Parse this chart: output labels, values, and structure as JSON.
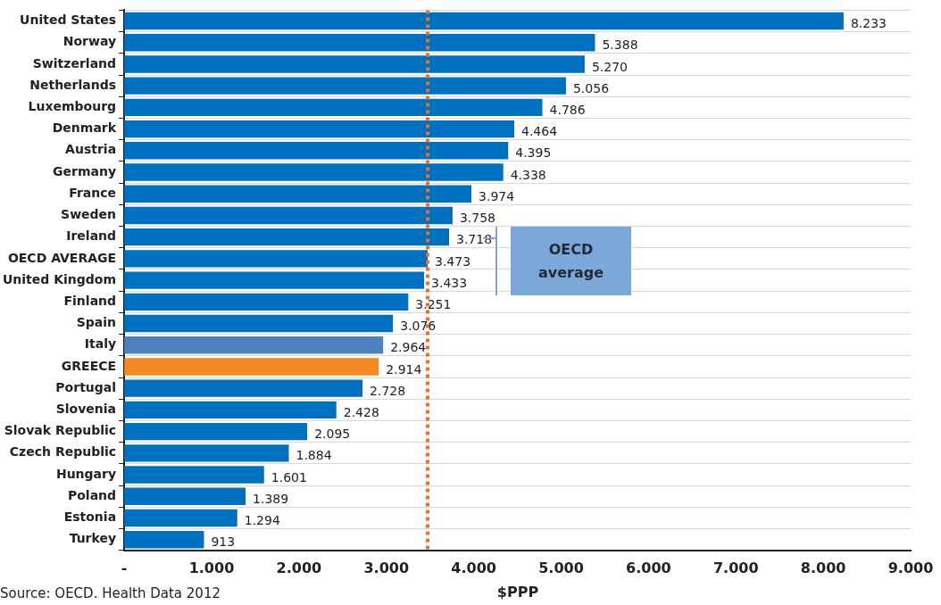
{
  "chart_data": {
    "type": "bar",
    "orientation": "horizontal",
    "xlabel": "$PPP",
    "categories": [
      "United States",
      "Norway",
      "Switzerland",
      "Netherlands",
      "Luxembourg",
      "Denmark",
      "Austria",
      "Germany",
      "France",
      "Sweden",
      "Ireland",
      "OECD AVERAGE",
      "United Kingdom",
      "Finland",
      "Spain",
      "Italy",
      "GREECE",
      "Portugal",
      "Slovenia",
      "Slovak Republic",
      "Czech Republic",
      "Hungary",
      "Poland",
      "Estonia",
      "Turkey"
    ],
    "values": [
      8233,
      5388,
      5270,
      5056,
      4786,
      4464,
      4395,
      4338,
      3974,
      3758,
      3718,
      3473,
      3433,
      3251,
      3076,
      2964,
      2914,
      2728,
      2428,
      2095,
      1884,
      1601,
      1389,
      1294,
      913
    ],
    "value_labels": [
      "8.233",
      "5.388",
      "5.270",
      "5.056",
      "4.786",
      "4.464",
      "4.395",
      "4.338",
      "3.974",
      "3.758",
      "3.718",
      "3.473",
      "3.433",
      "3.251",
      "3.076",
      "2.964",
      "2.914",
      "2.728",
      "2.428",
      "2.095",
      "1.884",
      "1.601",
      "1.389",
      "1.294",
      "913"
    ],
    "colors": [
      "#0070c0",
      "#0070c0",
      "#0070c0",
      "#0070c0",
      "#0070c0",
      "#0070c0",
      "#0070c0",
      "#0070c0",
      "#0070c0",
      "#0070c0",
      "#0070c0",
      "#0070c0",
      "#0070c0",
      "#0070c0",
      "#0070c0",
      "#4f81bd",
      "#f28a21",
      "#0070c0",
      "#0070c0",
      "#0070c0",
      "#0070c0",
      "#0070c0",
      "#0070c0",
      "#0070c0",
      "#0070c0"
    ],
    "xlim": [
      0,
      9000
    ],
    "xticks": [
      {
        "value": 0,
        "label": "-"
      },
      {
        "value": 1000,
        "label": "1.000"
      },
      {
        "value": 2000,
        "label": "2.000"
      },
      {
        "value": 3000,
        "label": "3.000"
      },
      {
        "value": 4000,
        "label": "4.000"
      },
      {
        "value": 5000,
        "label": "5.000"
      },
      {
        "value": 6000,
        "label": "6.000"
      },
      {
        "value": 7000,
        "label": "7.000"
      },
      {
        "value": 8000,
        "label": "8.000"
      },
      {
        "value": 9000,
        "label": "9.000"
      }
    ],
    "grid": "y",
    "legend": false,
    "ref_lines": [
      {
        "axis": "x",
        "value": 3473,
        "color": "#e8702a",
        "line_style": "dotted"
      }
    ],
    "annotations": [
      "OECD average",
      "Source: OECD. Health Data 2012"
    ]
  }
}
